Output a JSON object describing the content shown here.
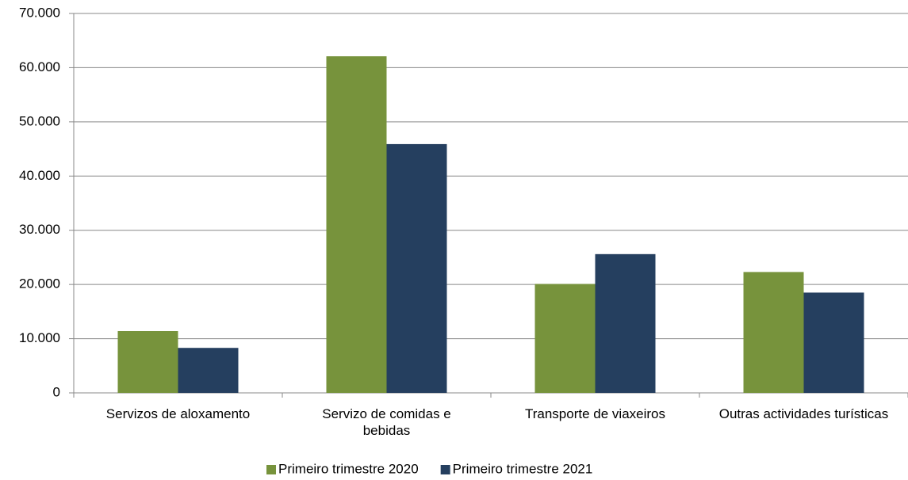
{
  "chart_data": {
    "type": "bar",
    "categories": [
      "Servizos de aloxamento",
      "Servizo de comidas e bebidas",
      "Transporte de viaxeiros",
      "Outras actividades turísticas"
    ],
    "series": [
      {
        "name": "Primeiro trimestre 2020",
        "color": "#77933c",
        "values": [
          11400,
          62100,
          20100,
          22300
        ]
      },
      {
        "name": "Primeiro trimestre 2021",
        "color": "#253f5f",
        "values": [
          8300,
          45900,
          25600,
          18500
        ]
      }
    ],
    "ylim": [
      0,
      70000
    ],
    "yticks": [
      0,
      {
        "value": 10000,
        "label": "10.000"
      },
      {
        "value": 20000,
        "label": "20.000"
      },
      {
        "value": 30000,
        "label": "30.000"
      },
      {
        "value": 40000,
        "label": "40.000"
      },
      {
        "value": 50000,
        "label": "50.000"
      },
      {
        "value": 60000,
        "label": "60.000"
      },
      {
        "value": 70000,
        "label": "70.000"
      }
    ],
    "grid": true,
    "legend": "bottom"
  }
}
